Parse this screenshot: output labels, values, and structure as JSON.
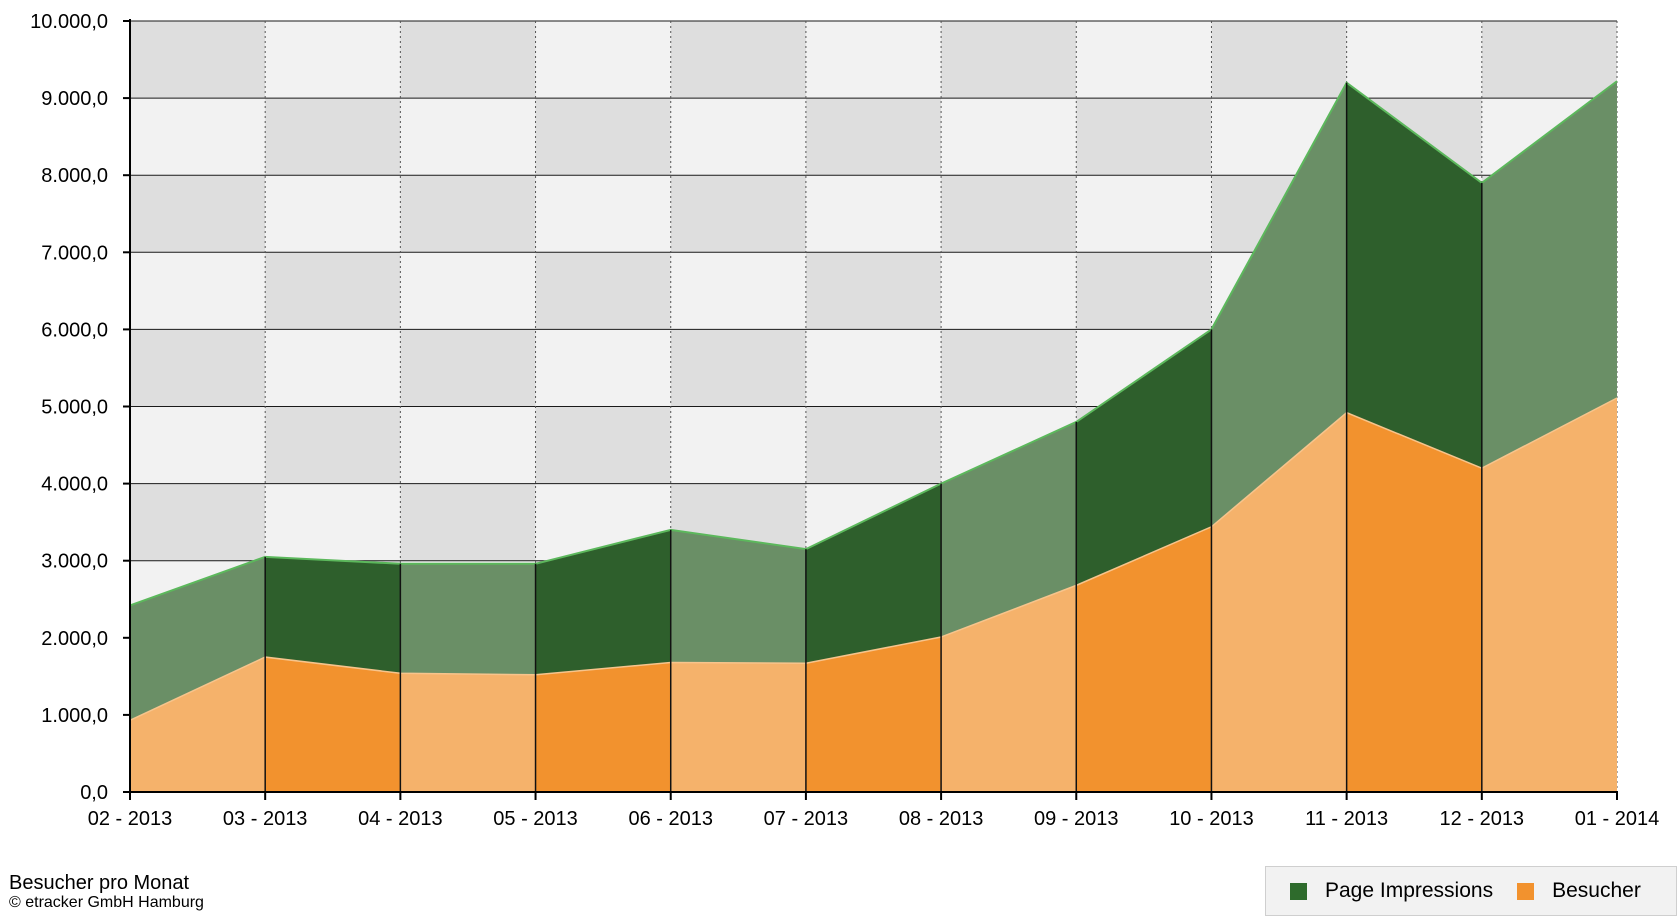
{
  "chart_data": {
    "type": "area",
    "categories": [
      "02 - 2013",
      "03 - 2013",
      "04 - 2013",
      "05 - 2013",
      "06 - 2013",
      "07 - 2013",
      "08 - 2013",
      "09 - 2013",
      "10 - 2013",
      "11 - 2013",
      "12 - 2013",
      "01 - 2014"
    ],
    "series": [
      {
        "name": "Page Impressions",
        "values": [
          2420,
          3050,
          2960,
          2960,
          3400,
          3150,
          4000,
          4800,
          6000,
          9200,
          7900,
          9220
        ]
      },
      {
        "name": "Besucher",
        "values": [
          930,
          1750,
          1540,
          1520,
          1680,
          1670,
          2010,
          2680,
          3440,
          4920,
          4200,
          5110
        ]
      }
    ],
    "ylim": [
      0,
      10000
    ],
    "yticks": [
      "0,0",
      "1.000,0",
      "2.000,0",
      "3.000,0",
      "4.000,0",
      "5.000,0",
      "6.000,0",
      "7.000,0",
      "8.000,0",
      "9.000,0",
      "10.000,0"
    ],
    "grid": true,
    "legend_position": "bottom-right",
    "colors": {
      "pi_light": "#6a8f66",
      "pi_dark": "#2e5f2c",
      "pi_line": "#5cb85c",
      "besucher_light": "#f5b26b",
      "besucher_dark": "#f2922e",
      "band_light": "#f2f2f2",
      "band_dark": "#dedede"
    }
  },
  "caption": {
    "title": "Besucher pro Monat",
    "copyright": "© etracker GmbH Hamburg"
  },
  "legend": {
    "items": [
      {
        "label": "Page Impressions",
        "color": "#2e6b2c"
      },
      {
        "label": "Besucher",
        "color": "#f2922e"
      }
    ]
  }
}
